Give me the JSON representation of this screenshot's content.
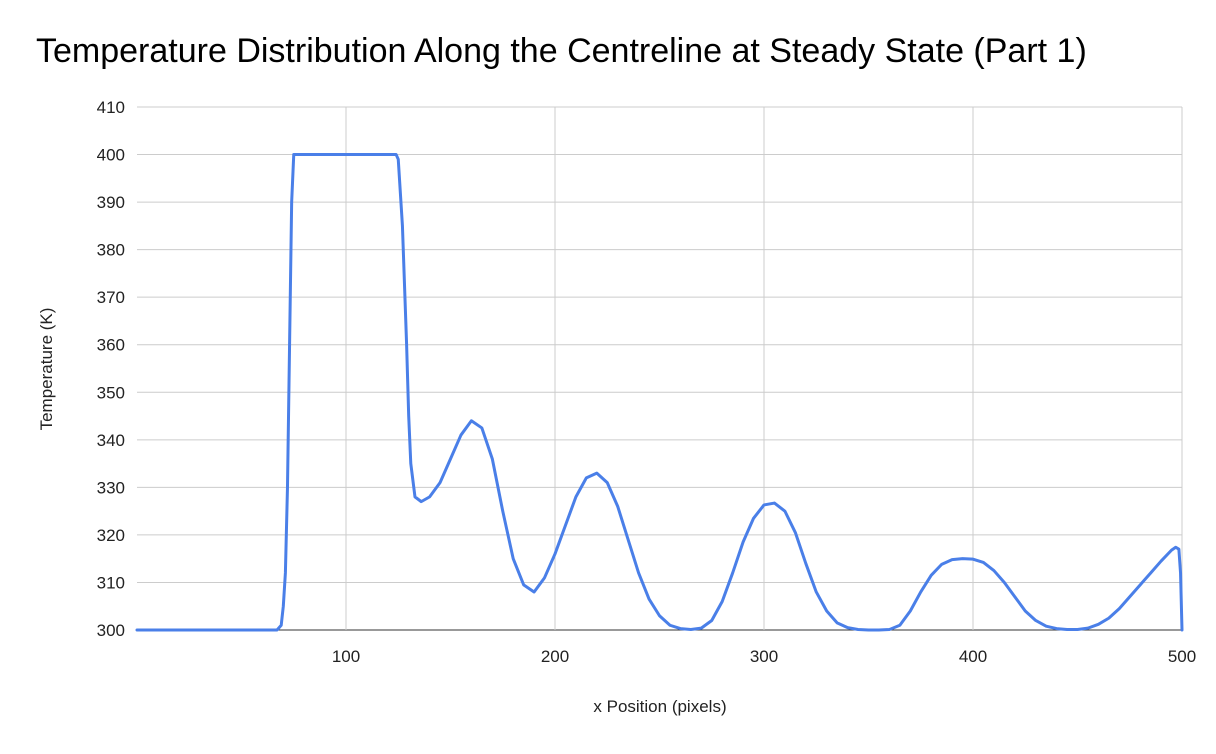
{
  "chart_data": {
    "type": "line",
    "title": "Temperature Distribution Along the Centreline at Steady State (Part 1)",
    "xlabel": "x Position (pixels)",
    "ylabel": "Temperature (K)",
    "xlim": [
      0,
      500
    ],
    "ylim": [
      300,
      410
    ],
    "x_ticks": [
      100,
      200,
      300,
      400,
      500
    ],
    "y_ticks": [
      300,
      310,
      320,
      330,
      340,
      350,
      360,
      370,
      380,
      390,
      400,
      410
    ],
    "grid": true,
    "legend": "none",
    "series": [
      {
        "color": "#4a7fe8",
        "points": [
          [
            0,
            300
          ],
          [
            60,
            300
          ],
          [
            67,
            300
          ],
          [
            69,
            301
          ],
          [
            70,
            305
          ],
          [
            71,
            312
          ],
          [
            72,
            330
          ],
          [
            73,
            360
          ],
          [
            74,
            390
          ],
          [
            75,
            400
          ],
          [
            100,
            400
          ],
          [
            124,
            400
          ],
          [
            125,
            399
          ],
          [
            127,
            385
          ],
          [
            129,
            360
          ],
          [
            130,
            345
          ],
          [
            131,
            335
          ],
          [
            133,
            328
          ],
          [
            136,
            327
          ],
          [
            140,
            328
          ],
          [
            145,
            331
          ],
          [
            150,
            336
          ],
          [
            155,
            341
          ],
          [
            160,
            344
          ],
          [
            165,
            342.5
          ],
          [
            170,
            336
          ],
          [
            175,
            325
          ],
          [
            180,
            315
          ],
          [
            185,
            309.5
          ],
          [
            190,
            308
          ],
          [
            195,
            311
          ],
          [
            200,
            316
          ],
          [
            205,
            322
          ],
          [
            210,
            328
          ],
          [
            215,
            332
          ],
          [
            220,
            333
          ],
          [
            225,
            331
          ],
          [
            230,
            326
          ],
          [
            235,
            319
          ],
          [
            240,
            312
          ],
          [
            245,
            306.5
          ],
          [
            250,
            303
          ],
          [
            255,
            301
          ],
          [
            260,
            300.3
          ],
          [
            265,
            300.1
          ],
          [
            270,
            300.4
          ],
          [
            275,
            302
          ],
          [
            280,
            306
          ],
          [
            285,
            312
          ],
          [
            290,
            318.5
          ],
          [
            295,
            323.5
          ],
          [
            300,
            326.3
          ],
          [
            305,
            326.7
          ],
          [
            310,
            325
          ],
          [
            315,
            320.5
          ],
          [
            320,
            314
          ],
          [
            325,
            308
          ],
          [
            330,
            304
          ],
          [
            335,
            301.5
          ],
          [
            340,
            300.5
          ],
          [
            345,
            300.1
          ],
          [
            350,
            300
          ],
          [
            355,
            300
          ],
          [
            360,
            300.1
          ],
          [
            365,
            301
          ],
          [
            370,
            304
          ],
          [
            375,
            308
          ],
          [
            380,
            311.5
          ],
          [
            385,
            313.8
          ],
          [
            390,
            314.8
          ],
          [
            395,
            315
          ],
          [
            400,
            314.9
          ],
          [
            405,
            314.2
          ],
          [
            410,
            312.5
          ],
          [
            415,
            310
          ],
          [
            420,
            307
          ],
          [
            425,
            304
          ],
          [
            430,
            302
          ],
          [
            435,
            300.8
          ],
          [
            440,
            300.3
          ],
          [
            445,
            300.1
          ],
          [
            450,
            300.1
          ],
          [
            455,
            300.4
          ],
          [
            460,
            301.2
          ],
          [
            465,
            302.5
          ],
          [
            470,
            304.5
          ],
          [
            475,
            307
          ],
          [
            480,
            309.5
          ],
          [
            485,
            312
          ],
          [
            490,
            314.5
          ],
          [
            495,
            316.8
          ],
          [
            497,
            317.4
          ],
          [
            498.5,
            317
          ],
          [
            499.3,
            312
          ],
          [
            500,
            300
          ]
        ]
      }
    ]
  }
}
